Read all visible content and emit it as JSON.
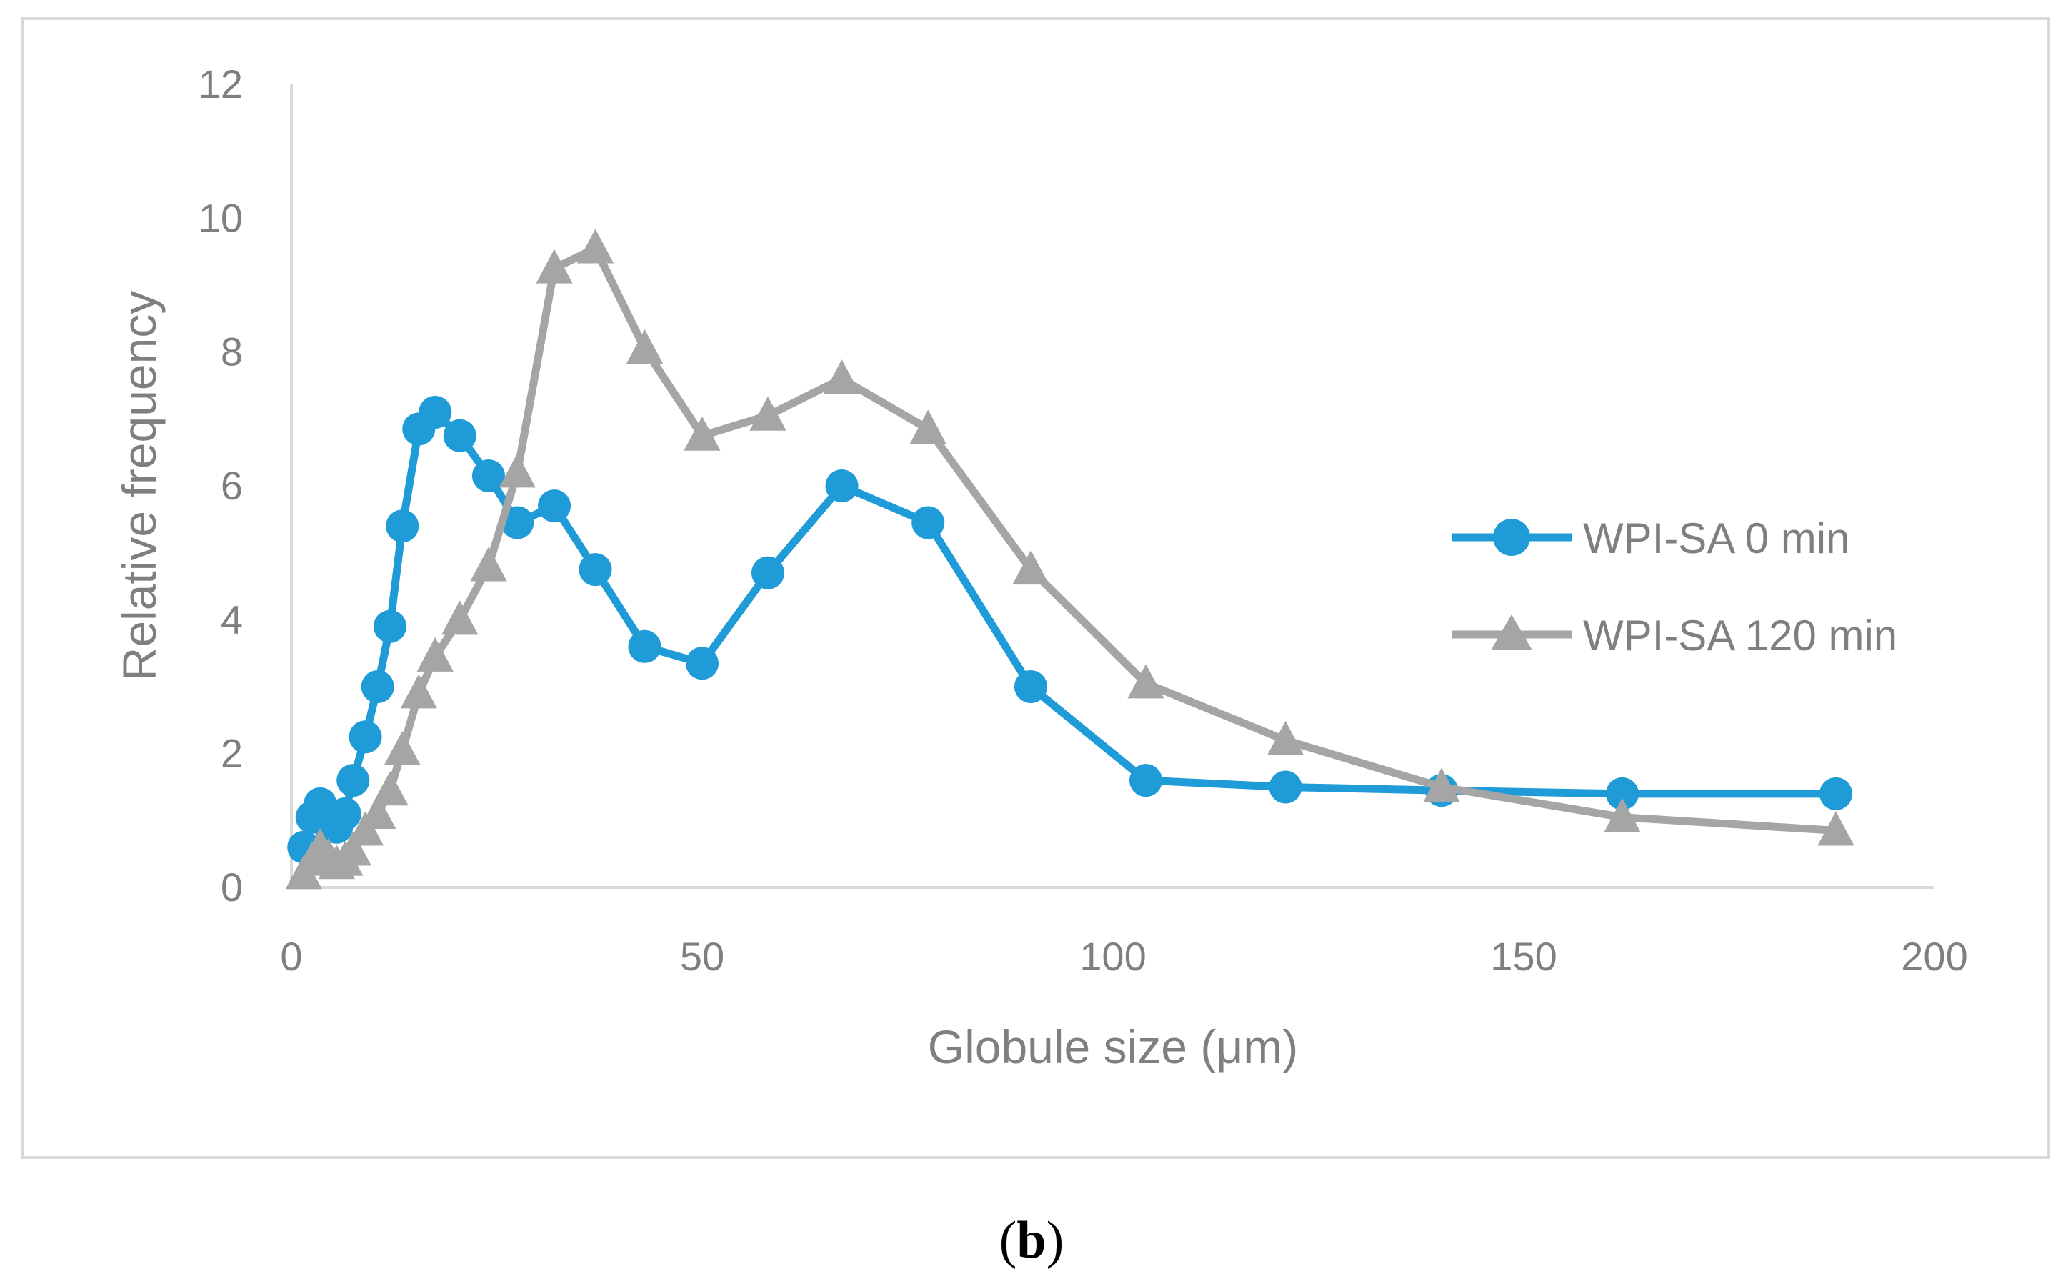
{
  "chart_data": {
    "type": "line",
    "title": "",
    "xlabel": "Globule size (μm)",
    "ylabel": "Relative frequency",
    "xlim": [
      0,
      200
    ],
    "ylim": [
      0,
      12
    ],
    "xticks": [
      0,
      50,
      100,
      150,
      200
    ],
    "yticks": [
      0,
      2,
      4,
      6,
      8,
      10,
      12
    ],
    "grid": false,
    "legend_position": "right",
    "panel_label": {
      "open": "(",
      "letter": "b",
      "close": ")"
    },
    "series": [
      {
        "name": "WPI-SA 0 min",
        "marker": "circle",
        "color": "#1f9bd7",
        "x": [
          1.5,
          2.5,
          3.5,
          4.5,
          5.5,
          6.5,
          7.5,
          9,
          10.5,
          12,
          13.5,
          15.5,
          17.5,
          20.5,
          24,
          27.5,
          32,
          37,
          43,
          50,
          58,
          67,
          77.5,
          90,
          104,
          121,
          140,
          162,
          188
        ],
        "y": [
          0.6,
          1.05,
          1.25,
          0.95,
          0.9,
          1.1,
          1.6,
          2.25,
          3.0,
          3.9,
          5.4,
          6.85,
          7.1,
          6.75,
          6.15,
          5.45,
          5.7,
          4.75,
          3.6,
          3.35,
          4.7,
          6.0,
          5.45,
          3.0,
          1.6,
          1.5,
          1.45,
          1.4,
          1.4
        ]
      },
      {
        "name": "WPI-SA 120 min",
        "marker": "triangle",
        "color": "#a5a5a5",
        "x": [
          1.5,
          2.5,
          3.5,
          4.5,
          5.5,
          6.5,
          7.5,
          9,
          10.5,
          12,
          13.5,
          15.5,
          17.5,
          20.5,
          24,
          27.5,
          32,
          37,
          43,
          50,
          58,
          67,
          77.5,
          90,
          104,
          121,
          140,
          162,
          188
        ],
        "y": [
          0.2,
          0.4,
          0.6,
          0.45,
          0.35,
          0.4,
          0.55,
          0.85,
          1.1,
          1.45,
          2.05,
          2.9,
          3.45,
          4.0,
          4.8,
          6.2,
          9.25,
          9.55,
          8.05,
          6.75,
          7.05,
          7.6,
          6.85,
          4.75,
          3.05,
          2.2,
          1.5,
          1.05,
          0.85
        ]
      }
    ]
  }
}
